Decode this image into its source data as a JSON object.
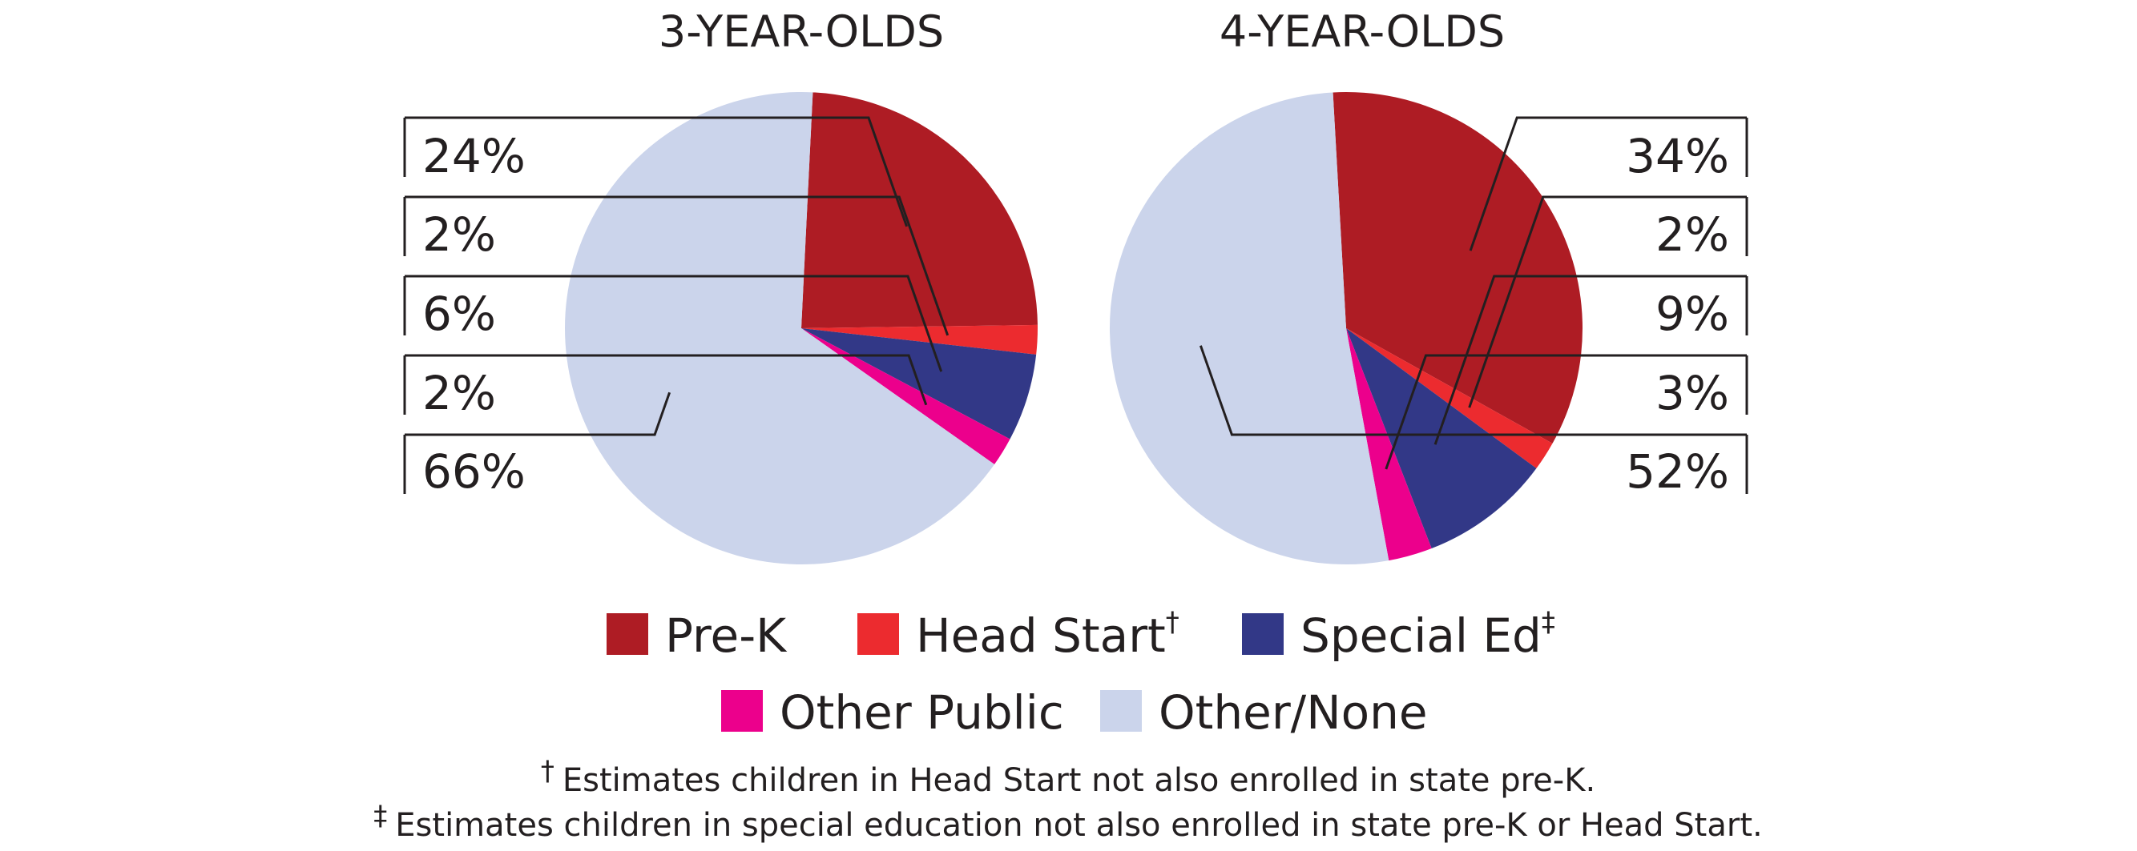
{
  "colors": {
    "Pre-K": "#ae1c24",
    "Head Start": "#ec2b2f",
    "Special Ed": "#323887",
    "Other Public": "#ec008c",
    "Other/None": "#cbd4eb",
    "text": "#231f20"
  },
  "legend": [
    {
      "label": "Pre-K",
      "sup": "",
      "color_key": "Pre-K",
      "icon": "legend-swatch"
    },
    {
      "label": "Head Start",
      "sup": "†",
      "color_key": "Head Start",
      "icon": "legend-swatch"
    },
    {
      "label": "Special Ed",
      "sup": "‡",
      "color_key": "Special Ed",
      "icon": "legend-swatch"
    },
    {
      "label": "Other Public",
      "sup": "",
      "color_key": "Other Public",
      "icon": "legend-swatch"
    },
    {
      "label": "Other/None",
      "sup": "",
      "color_key": "Other/None",
      "icon": "legend-swatch"
    }
  ],
  "footnotes": {
    "dagger": {
      "mark": "†",
      "text": "Estimates children in Head Start not also enrolled in state pre-K."
    },
    "double_dagger": {
      "mark": "‡",
      "text": "Estimates children in special education not also enrolled in state pre-K or Head Start."
    }
  },
  "chart_data": [
    {
      "type": "pie",
      "title": "3-YEAR-OLDS",
      "labels": [
        "Pre-K",
        "Head Start",
        "Special Ed",
        "Other Public",
        "Other/None"
      ],
      "values": [
        24,
        2,
        6,
        2,
        66
      ],
      "value_labels": [
        "24%",
        "2%",
        "6%",
        "2%",
        "66%"
      ],
      "label_side": "left"
    },
    {
      "type": "pie",
      "title": "4-YEAR-OLDS",
      "labels": [
        "Pre-K",
        "Head Start",
        "Special Ed",
        "Other Public",
        "Other/None"
      ],
      "values": [
        34,
        2,
        9,
        3,
        52
      ],
      "value_labels": [
        "34%",
        "2%",
        "9%",
        "3%",
        "52%"
      ],
      "label_side": "right"
    }
  ]
}
